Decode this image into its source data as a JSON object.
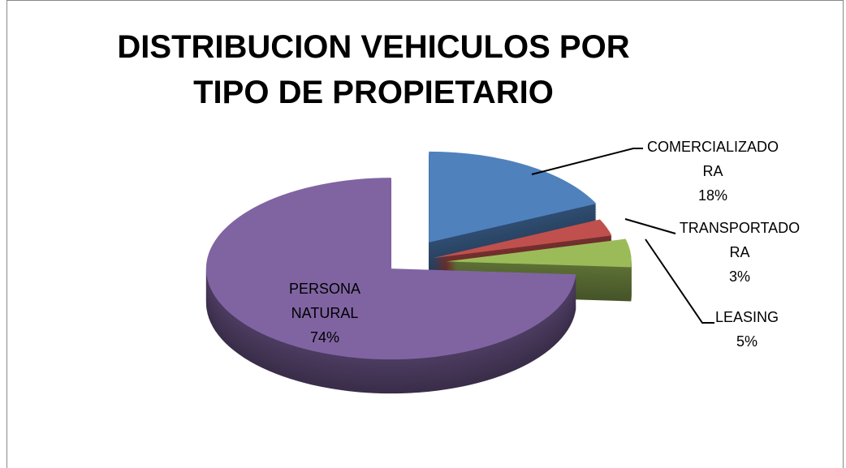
{
  "chart_data": {
    "type": "pie",
    "title": "DISTRIBUCION VEHICULOS POR TIPO DE PROPIETARIO",
    "categories": [
      "COMERCIALIZADORA",
      "TRANSPORTADORA",
      "LEASING",
      "PERSONA NATURAL"
    ],
    "values": [
      18,
      3,
      5,
      74
    ],
    "value_labels": [
      "18%",
      "3%",
      "5%",
      "74%"
    ],
    "colors": [
      "#4f81bd",
      "#c0504d",
      "#9bbb59",
      "#8064a2"
    ]
  }
}
